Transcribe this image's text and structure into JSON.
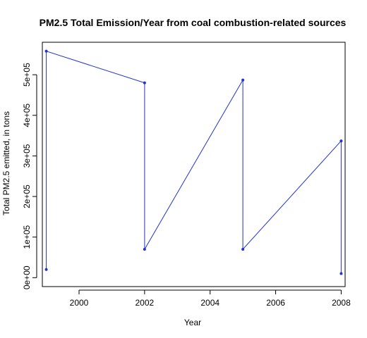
{
  "chart_data": {
    "type": "line",
    "title": "PM2.5 Total Emission/Year from coal combustion-related sources",
    "xlabel": "Year",
    "ylabel": "Total PM2.5 emitted, in tons",
    "x_ticks": [
      2000,
      2002,
      2004,
      2006,
      2008
    ],
    "x_tick_labels": [
      "2000",
      "2002",
      "2004",
      "2006",
      "2008"
    ],
    "y_ticks": [
      0,
      100000,
      200000,
      300000,
      400000,
      500000
    ],
    "y_tick_labels": [
      "0e+00",
      "1e+05",
      "2e+05",
      "3e+05",
      "4e+05",
      "5e+05"
    ],
    "xlim": [
      1998.88,
      2008.12
    ],
    "ylim": [
      -22000,
      580000
    ],
    "grid": false,
    "series": [
      {
        "color": "#2233cc",
        "x": [
          1999,
          1999,
          2002,
          2002,
          2005,
          2005,
          2008,
          2008
        ],
        "y": [
          20000,
          558000,
          480000,
          70000,
          487000,
          70000,
          337000,
          10000
        ]
      }
    ]
  }
}
